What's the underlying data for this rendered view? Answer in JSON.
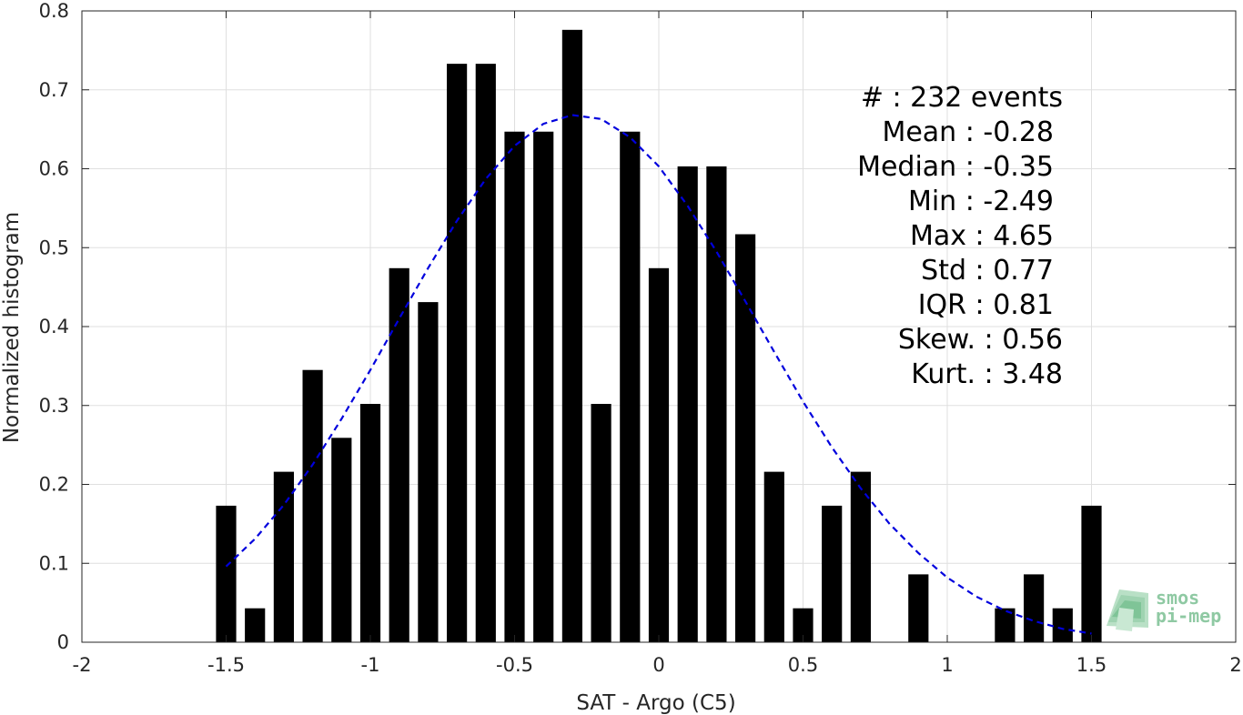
{
  "chart_data": {
    "type": "bar",
    "xlabel": "SAT - Argo (C5)",
    "ylabel": "Normalized histogram",
    "xlim": [
      -2,
      2
    ],
    "ylim": [
      0,
      0.8
    ],
    "x_ticks": [
      -2,
      -1.5,
      -1,
      -0.5,
      0,
      0.5,
      1,
      1.5,
      2
    ],
    "x_tick_labels": [
      "-2",
      "-1.5",
      "-1",
      "-0.5",
      "0",
      "0.5",
      "1",
      "1.5",
      "2"
    ],
    "y_ticks": [
      0,
      0.1,
      0.2,
      0.3,
      0.4,
      0.5,
      0.6,
      0.7,
      0.8
    ],
    "y_tick_labels": [
      "0",
      "0.1",
      "0.2",
      "0.3",
      "0.4",
      "0.5",
      "0.6",
      "0.7",
      "0.8"
    ],
    "grid": true,
    "bar_width": 0.07,
    "bars": {
      "x": [
        -1.5,
        -1.4,
        -1.3,
        -1.2,
        -1.1,
        -1.0,
        -0.9,
        -0.8,
        -0.7,
        -0.6,
        -0.5,
        -0.4,
        -0.3,
        -0.2,
        -0.1,
        0.0,
        0.1,
        0.2,
        0.3,
        0.4,
        0.5,
        0.6,
        0.7,
        0.8,
        0.9,
        1.0,
        1.1,
        1.2,
        1.3,
        1.4,
        1.5
      ],
      "values": [
        0.173,
        0.043,
        0.216,
        0.345,
        0.259,
        0.302,
        0.474,
        0.431,
        0.733,
        0.733,
        0.647,
        0.647,
        0.776,
        0.302,
        0.647,
        0.474,
        0.603,
        0.603,
        0.517,
        0.216,
        0.043,
        0.173,
        0.216,
        0,
        0.086,
        0,
        0,
        0.043,
        0.086,
        0.043,
        0.173
      ],
      "color": "#000000"
    },
    "fit_curve": {
      "style": "dashed",
      "color": "#0000dd",
      "x": [
        -1.5,
        -1.4,
        -1.3,
        -1.2,
        -1.1,
        -1.0,
        -0.9,
        -0.8,
        -0.7,
        -0.6,
        -0.5,
        -0.4,
        -0.3,
        -0.2,
        -0.1,
        0.0,
        0.1,
        0.2,
        0.3,
        0.4,
        0.5,
        0.6,
        0.7,
        0.8,
        0.9,
        1.0,
        1.1,
        1.2,
        1.3,
        1.4,
        1.5
      ],
      "y": [
        0.096,
        0.131,
        0.174,
        0.225,
        0.283,
        0.345,
        0.41,
        0.474,
        0.534,
        0.587,
        0.629,
        0.657,
        0.668,
        0.663,
        0.64,
        0.603,
        0.553,
        0.495,
        0.432,
        0.368,
        0.305,
        0.247,
        0.195,
        0.15,
        0.113,
        0.082,
        0.058,
        0.04,
        0.027,
        0.017,
        0.011
      ]
    },
    "stats": [
      {
        "label": "#  : 232 events"
      },
      {
        "label": "Mean : -0.28"
      },
      {
        "label": "Median : -0.35"
      },
      {
        "label": "Min : -2.49"
      },
      {
        "label": "Max : 4.65"
      },
      {
        "label": "Std : 0.77"
      },
      {
        "label": "IQR : 0.81"
      },
      {
        "label": "Skew. : 0.56"
      },
      {
        "label": "Kurt. : 3.48"
      }
    ]
  },
  "logo": {
    "line1": "smos",
    "line2": "pi-mep",
    "color": "#8fc9a3"
  }
}
